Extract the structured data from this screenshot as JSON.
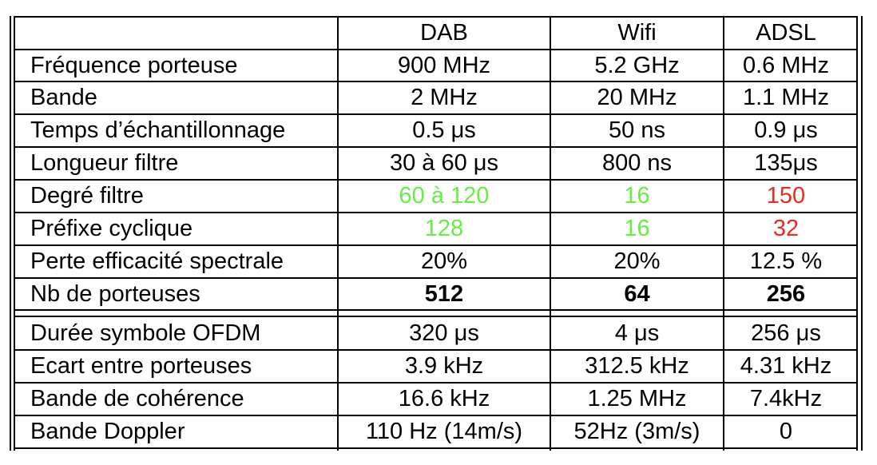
{
  "table": {
    "header": [
      "",
      "DAB",
      "Wifi",
      "ADSL"
    ],
    "rows": [
      [
        "Fréquence porteuse",
        "900 MHz",
        "5.2 GHz",
        "0.6 MHz"
      ],
      [
        "Bande",
        "2 MHz",
        "20 MHz",
        "1.1 MHz"
      ],
      [
        "Temps d’échantillonnage",
        "0.5 μs",
        "50 ns",
        "0.9 μs"
      ],
      [
        "Longueur filtre",
        "30 à 60 μs",
        "800 ns",
        "135μs"
      ],
      [
        "Degré filtre",
        "60 à 120",
        "16",
        "150"
      ],
      [
        "Préfixe cyclique",
        "128",
        "16",
        "32"
      ],
      [
        "Perte efficacité spectrale",
        "20%",
        "20%",
        "12.5 %"
      ],
      [
        "Nb de porteuses",
        "512",
        "64",
        "256"
      ],
      [
        "Durée symbole OFDM",
        "320 μs",
        "4 μs",
        "256 μs"
      ],
      [
        "Ecart entre porteuses",
        "3.9 kHz",
        "312.5 kHz",
        "4.31 kHz"
      ],
      [
        "Bande de cohérence",
        "16.6 kHz",
        "1.25 MHz",
        "7.4kHz"
      ],
      [
        "Bande Doppler",
        "110 Hz (14m/s)",
        "52Hz (3m/s)",
        "0"
      ]
    ]
  },
  "colors": {
    "good": "#66ee44",
    "bad": "#ee2a1a",
    "text": "#000000"
  }
}
